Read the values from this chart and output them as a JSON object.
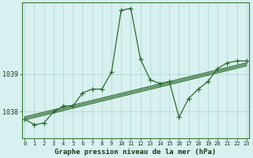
{
  "hours": [
    0,
    1,
    2,
    3,
    4,
    5,
    6,
    7,
    8,
    9,
    10,
    11,
    12,
    13,
    14,
    15,
    16,
    17,
    18,
    19,
    20,
    21,
    22,
    23
  ],
  "pressure": [
    1037.8,
    1037.65,
    1037.7,
    1038.0,
    1038.15,
    1038.15,
    1038.5,
    1038.6,
    1038.6,
    1039.05,
    1040.7,
    1040.75,
    1039.4,
    1038.85,
    1038.75,
    1038.8,
    1037.85,
    1038.35,
    1038.6,
    1038.8,
    1039.15,
    1039.3,
    1039.35,
    1039.35
  ],
  "trend_lines": [
    [
      1037.78,
      1039.22
    ],
    [
      1037.82,
      1039.26
    ],
    [
      1037.86,
      1039.3
    ]
  ],
  "main_line_color": "#2d6b2d",
  "trend_line_color": "#2d6b2d",
  "bg_color": "#d8f0f0",
  "grid_color": "#b0d4d4",
  "xlabel": "Graphe pression niveau de la mer (hPa)",
  "yticks": [
    1038,
    1039
  ],
  "ylim": [
    1037.3,
    1040.9
  ],
  "xlim": [
    -0.3,
    23.3
  ],
  "marker": "+"
}
